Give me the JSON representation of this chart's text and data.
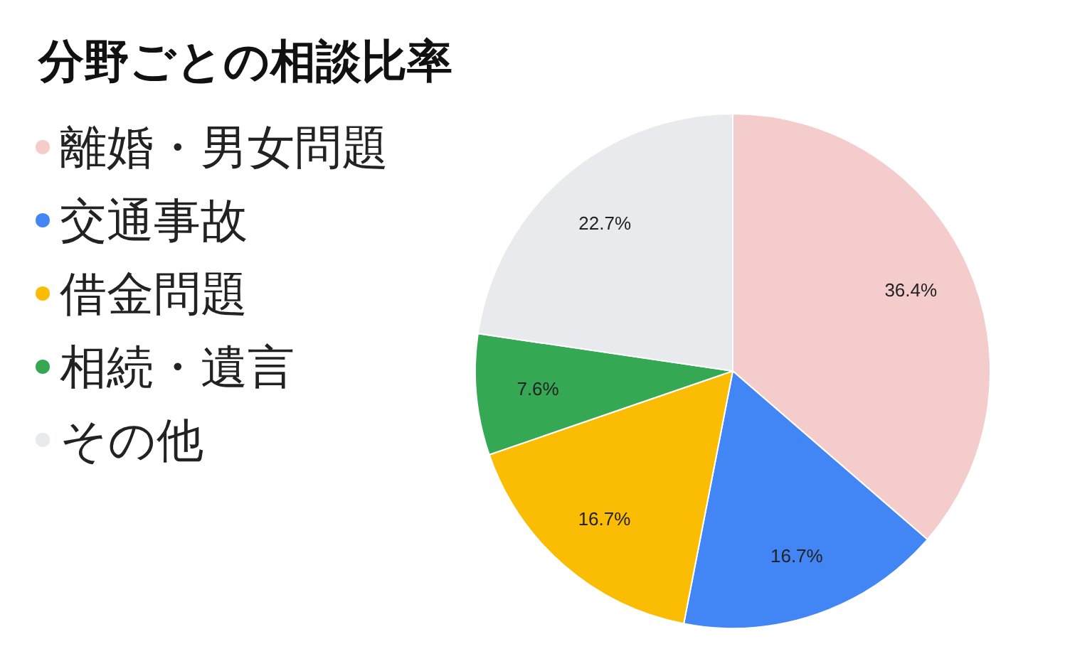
{
  "chart_data": {
    "type": "pie",
    "title": "分野ごとの相談比率",
    "categories": [
      "離婚・男女問題",
      "交通事故",
      "借金問題",
      "相続・遺言",
      "その他"
    ],
    "values": [
      36.4,
      16.7,
      16.7,
      7.6,
      22.7
    ],
    "colors": [
      "#f4cccc",
      "#4285f4",
      "#fbbc04",
      "#34a853",
      "#e8eaed"
    ],
    "value_labels": [
      "36.4%",
      "16.7%",
      "16.7%",
      "7.6%",
      "22.7%"
    ],
    "legend": "left"
  }
}
